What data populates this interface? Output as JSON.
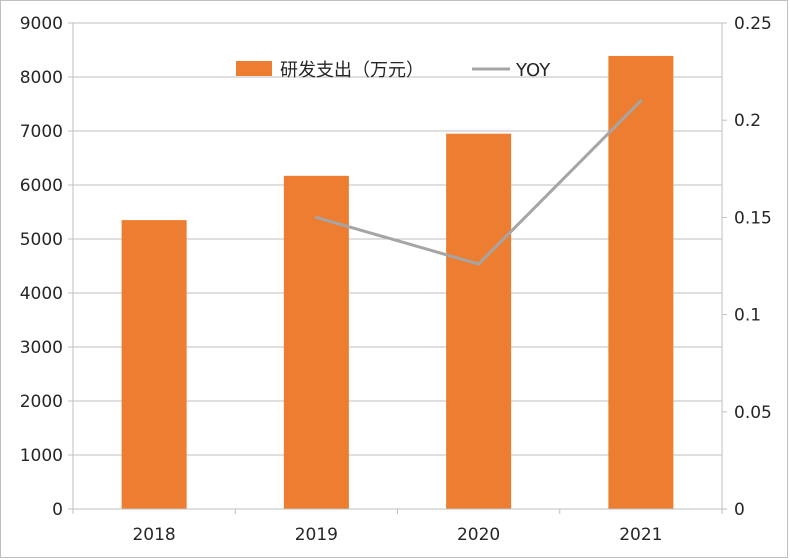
{
  "chart_data": {
    "type": "bar",
    "categories": [
      "2018",
      "2019",
      "2020",
      "2021"
    ],
    "series": [
      {
        "name": "研发支出（万元）",
        "type": "bar",
        "axis": "left",
        "values": [
          5350,
          6170,
          6950,
          8390
        ],
        "color": "#ED7D31"
      },
      {
        "name": "YOY",
        "type": "line",
        "axis": "right",
        "values": [
          null,
          0.15,
          0.126,
          0.21
        ],
        "color": "#A5A5A5"
      }
    ],
    "y_left": {
      "min": 0,
      "max": 9000,
      "step": 1000,
      "ticks": [
        "0",
        "1000",
        "2000",
        "3000",
        "4000",
        "5000",
        "6000",
        "7000",
        "8000",
        "9000"
      ]
    },
    "y_right": {
      "min": 0,
      "max": 0.25,
      "step": 0.05,
      "ticks": [
        "0",
        "0.05",
        "0.1",
        "0.15",
        "0.2",
        "0.25"
      ]
    },
    "legend": {
      "position": "top-center",
      "bar_label": "研发支出（万元）",
      "line_label": "YOY"
    },
    "grid": true
  }
}
